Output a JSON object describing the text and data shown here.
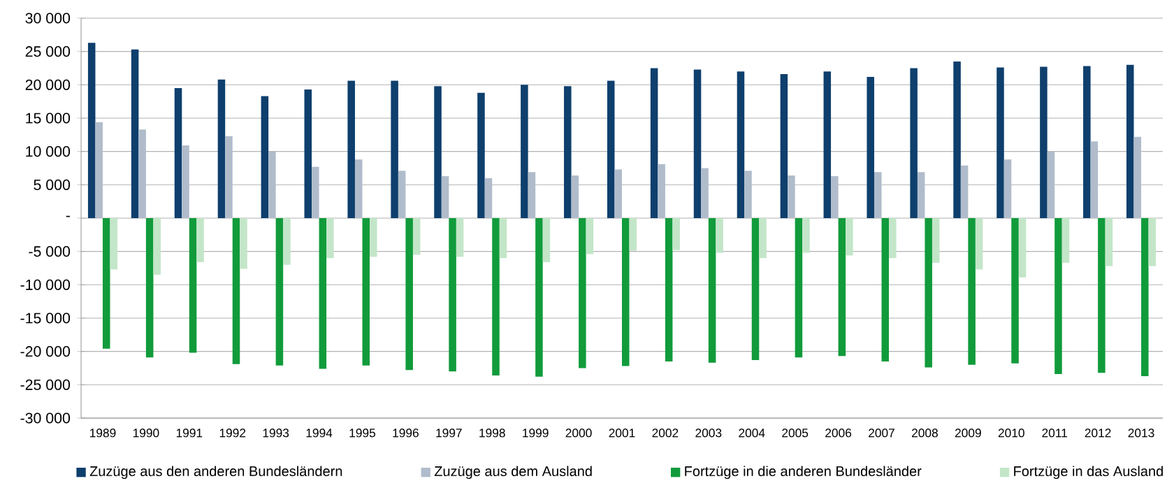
{
  "chart_data": {
    "type": "bar",
    "categories": [
      "1989",
      "1990",
      "1991",
      "1992",
      "1993",
      "1994",
      "1995",
      "1996",
      "1997",
      "1998",
      "1999",
      "2000",
      "2001",
      "2002",
      "2003",
      "2004",
      "2005",
      "2006",
      "2007",
      "2008",
      "2009",
      "2010",
      "2011",
      "2012",
      "2013"
    ],
    "series": [
      {
        "name": "Zuzüge aus den anderen Bundesländern",
        "color": "#0e3f6d",
        "values": [
          26300,
          25300,
          19500,
          20800,
          18300,
          19300,
          20600,
          20600,
          19800,
          18800,
          20000,
          19800,
          20600,
          22500,
          22300,
          22000,
          21600,
          22000,
          21200,
          22500,
          23500,
          22600,
          22700,
          22800,
          23000
        ]
      },
      {
        "name": "Zuzüge aus dem Ausland",
        "color": "#b0bccb",
        "values": [
          14400,
          13300,
          10900,
          12300,
          10000,
          7700,
          8800,
          7100,
          6300,
          6000,
          6900,
          6400,
          7300,
          8100,
          7500,
          7100,
          6400,
          6300,
          6900,
          6900,
          7900,
          8800,
          10000,
          11500,
          12200
        ]
      },
      {
        "name": "Fortzüge in die anderen Bundesländer",
        "color": "#119b3b",
        "values": [
          -19600,
          -20900,
          -20200,
          -21900,
          -22100,
          -22600,
          -22100,
          -22800,
          -23000,
          -23600,
          -23800,
          -22500,
          -22200,
          -21500,
          -21700,
          -21300,
          -20900,
          -20700,
          -21500,
          -22400,
          -22000,
          -21800,
          -23400,
          -23200,
          -23700
        ]
      },
      {
        "name": "Fortzüge in das Ausland",
        "color": "#c3e6c8",
        "values": [
          -7700,
          -8500,
          -6600,
          -7600,
          -7000,
          -6000,
          -5800,
          -5500,
          -5800,
          -6000,
          -6600,
          -5400,
          -4900,
          -4800,
          -5200,
          -6000,
          -5200,
          -5600,
          -6000,
          -6700,
          -7700,
          -8900,
          -6700,
          -7200,
          -7200
        ]
      }
    ],
    "ylim": [
      -30000,
      30000
    ],
    "yticks": [
      {
        "value": -30000,
        "label": "-30 000"
      },
      {
        "value": -25000,
        "label": "-25 000"
      },
      {
        "value": -20000,
        "label": "-20 000"
      },
      {
        "value": -15000,
        "label": "-15 000"
      },
      {
        "value": -10000,
        "label": "-10 000"
      },
      {
        "value": -5000,
        "label": "-5 000"
      },
      {
        "value": 0,
        "label": "-"
      },
      {
        "value": 5000,
        "label": "5 000"
      },
      {
        "value": 10000,
        "label": "10 000"
      },
      {
        "value": 15000,
        "label": "15 000"
      },
      {
        "value": 20000,
        "label": "20 000"
      },
      {
        "value": 25000,
        "label": "25 000"
      },
      {
        "value": 30000,
        "label": "30 000"
      }
    ],
    "grid": "y",
    "legend": "bottom"
  }
}
